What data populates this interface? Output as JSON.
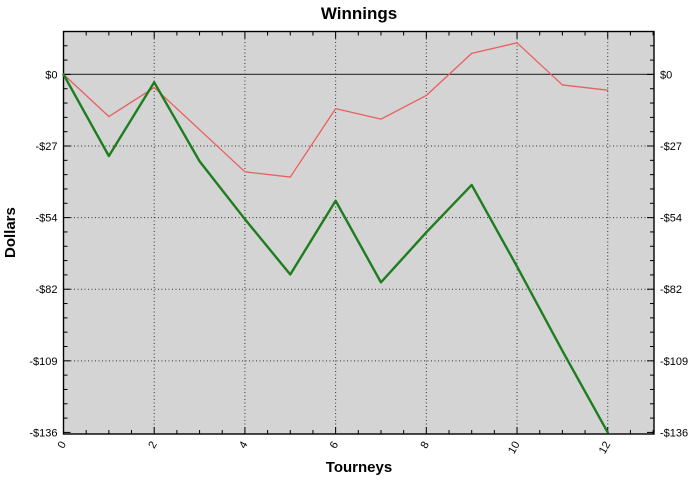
{
  "title": "Winnings",
  "chart_data": {
    "type": "line",
    "title": "Winnings",
    "xlabel": "Tourneys",
    "ylabel": "Dollars",
    "plot_bg": "#d4d4d4",
    "grid": "dotted",
    "legend": "none",
    "zero_line": true,
    "xlim": [
      0,
      13.02
    ],
    "ylim": [
      -136.6,
      16.3
    ],
    "x": [
      0,
      1,
      2,
      3,
      4,
      5,
      6,
      7,
      8,
      9,
      10,
      11,
      12
    ],
    "series": [
      {
        "name": "session-line-red",
        "color": "#ea5f5f",
        "width": 1.3,
        "values": [
          0,
          -16,
          -5,
          -21,
          -37,
          -39,
          -13,
          -17,
          -8,
          8,
          12,
          -4,
          -6
        ]
      },
      {
        "name": "total-line-green",
        "color": "#1e7d1e",
        "width": 2.4,
        "values": [
          0,
          -31,
          -3,
          -33,
          -55,
          -76,
          -48,
          -79,
          -60,
          -42,
          -73,
          -105,
          -136
        ]
      }
    ],
    "x_major_ticks": [
      0,
      2,
      4,
      6,
      8,
      10,
      12
    ],
    "x_tick_labels": [
      "0",
      "2",
      "4",
      "6",
      "8",
      "10",
      "12"
    ],
    "x_minor_step": 0.5,
    "x_grid_values": [
      2,
      4,
      6,
      8,
      10,
      12
    ],
    "y_major_values": [
      0,
      -27.2,
      -54.4,
      -81.6,
      -108.8,
      -136
    ],
    "y_tick_labels": [
      "$0",
      "-$27",
      "-$54",
      "-$82",
      "-$109",
      "-$136"
    ],
    "y_minor_step": 5.44,
    "y_grid_values": [
      -27.2,
      -54.4,
      -81.6,
      -108.8
    ],
    "axis_color": "#000000",
    "grid_color": "#333333",
    "zero_line_color": "#404040"
  }
}
